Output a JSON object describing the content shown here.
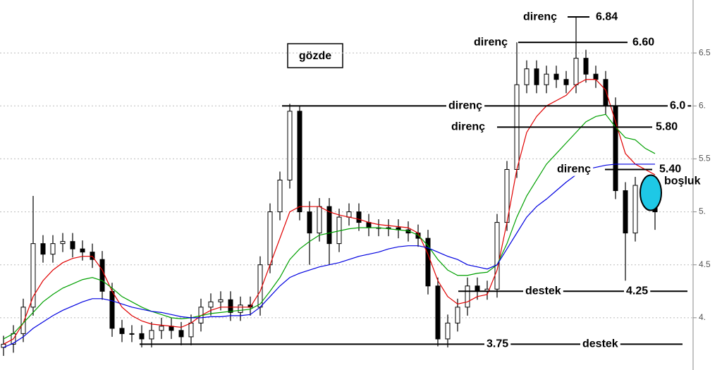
{
  "chart_data": {
    "type": "candlestick",
    "open": [
      3.72,
      3.75,
      3.85,
      4.1,
      4.7,
      4.6,
      4.7,
      4.72,
      4.65,
      4.62,
      4.55,
      4.25,
      3.9,
      3.85,
      3.85,
      3.8,
      3.88,
      3.92,
      3.88,
      3.82,
      3.95,
      4.1,
      4.15,
      4.17,
      4.05,
      4.12,
      4.1,
      4.5,
      5.0,
      5.3,
      5.95,
      5.0,
      4.8,
      5.05,
      4.7,
      4.95,
      5.0,
      4.9,
      4.85,
      4.85,
      4.85,
      4.83,
      4.8,
      4.75,
      4.3,
      3.8,
      3.95,
      4.1,
      4.3,
      4.25,
      4.27,
      4.9,
      5.4,
      6.2,
      6.35,
      6.2,
      6.3,
      6.25,
      6.2,
      6.45,
      6.3,
      6.25,
      6.0,
      5.2,
      4.8,
      5.25,
      5.2
    ],
    "high": [
      3.83,
      3.93,
      4.18,
      5.15,
      4.78,
      4.78,
      4.8,
      4.8,
      4.73,
      4.7,
      4.63,
      4.33,
      3.98,
      3.93,
      3.93,
      3.96,
      4.0,
      4.0,
      3.96,
      4.03,
      4.18,
      4.23,
      4.25,
      4.25,
      4.2,
      4.2,
      4.58,
      5.08,
      5.38,
      6.02,
      6.0,
      5.1,
      5.13,
      5.13,
      5.03,
      5.08,
      5.08,
      4.98,
      4.93,
      4.93,
      4.93,
      4.91,
      4.88,
      4.83,
      4.38,
      4.03,
      4.18,
      4.38,
      4.38,
      4.35,
      4.98,
      5.48,
      6.6,
      6.43,
      6.43,
      6.38,
      6.38,
      6.33,
      6.84,
      6.53,
      6.38,
      6.33,
      6.08,
      5.28,
      5.33,
      5.33,
      5.28
    ],
    "low": [
      3.64,
      3.67,
      3.77,
      4.02,
      4.52,
      4.52,
      4.62,
      4.57,
      4.54,
      4.47,
      4.17,
      3.82,
      3.77,
      3.77,
      3.72,
      3.72,
      3.8,
      3.8,
      3.74,
      3.74,
      3.87,
      4.02,
      4.07,
      3.97,
      3.97,
      4.02,
      4.02,
      4.42,
      4.92,
      5.22,
      4.92,
      4.5,
      4.72,
      4.5,
      4.62,
      4.87,
      4.82,
      4.77,
      4.77,
      4.77,
      4.75,
      4.72,
      4.67,
      4.22,
      3.73,
      3.72,
      3.87,
      4.02,
      4.17,
      4.17,
      4.19,
      4.82,
      5.32,
      6.12,
      6.12,
      6.12,
      6.17,
      6.12,
      6.12,
      6.22,
      6.17,
      5.92,
      5.12,
      4.35,
      4.72,
      5.12,
      4.83
    ],
    "close": [
      3.75,
      3.85,
      4.1,
      4.7,
      4.6,
      4.7,
      4.72,
      4.65,
      4.62,
      4.55,
      4.25,
      3.9,
      3.85,
      3.85,
      3.8,
      3.88,
      3.92,
      3.88,
      3.82,
      3.95,
      4.1,
      4.15,
      4.17,
      4.05,
      4.12,
      4.1,
      4.5,
      5.0,
      5.3,
      5.95,
      5.0,
      4.8,
      5.05,
      4.7,
      4.95,
      5.0,
      4.9,
      4.85,
      4.85,
      4.85,
      4.83,
      4.8,
      4.75,
      4.3,
      3.8,
      3.95,
      4.1,
      4.3,
      4.25,
      4.27,
      4.9,
      5.4,
      6.2,
      6.35,
      6.2,
      6.3,
      6.25,
      6.2,
      6.45,
      6.3,
      6.25,
      6.0,
      5.2,
      4.8,
      5.25,
      5.2,
      5.0
    ],
    "moving_averages": [
      {
        "color": "#e00000",
        "values": [
          3.75,
          3.8,
          3.95,
          4.2,
          4.35,
          4.45,
          4.52,
          4.56,
          4.58,
          4.58,
          4.45,
          4.25,
          4.1,
          4.02,
          3.97,
          3.94,
          3.93,
          3.92,
          3.91,
          3.95,
          4.02,
          4.07,
          4.1,
          4.1,
          4.1,
          4.1,
          4.25,
          4.5,
          4.75,
          5.0,
          5.05,
          5.05,
          5.05,
          5.0,
          4.97,
          4.95,
          4.93,
          4.9,
          4.88,
          4.87,
          4.86,
          4.85,
          4.8,
          4.6,
          4.35,
          4.2,
          4.13,
          4.15,
          4.2,
          4.22,
          4.45,
          4.9,
          5.4,
          5.75,
          5.9,
          6.0,
          6.05,
          6.1,
          6.2,
          6.25,
          6.25,
          6.15,
          5.85,
          5.55,
          5.45,
          5.4,
          5.35
        ]
      },
      {
        "color": "#00a000",
        "values": [
          3.8,
          3.85,
          3.95,
          4.05,
          4.15,
          4.22,
          4.28,
          4.32,
          4.36,
          4.38,
          4.35,
          4.28,
          4.2,
          4.15,
          4.1,
          4.06,
          4.03,
          4.0,
          3.99,
          4.0,
          4.02,
          4.04,
          4.05,
          4.06,
          4.07,
          4.08,
          4.13,
          4.25,
          4.38,
          4.55,
          4.65,
          4.72,
          4.78,
          4.8,
          4.82,
          4.84,
          4.85,
          4.85,
          4.85,
          4.84,
          4.83,
          4.82,
          4.78,
          4.68,
          4.55,
          4.45,
          4.4,
          4.4,
          4.42,
          4.43,
          4.5,
          4.7,
          4.95,
          5.15,
          5.3,
          5.45,
          5.55,
          5.65,
          5.75,
          5.85,
          5.9,
          5.92,
          5.8,
          5.7,
          5.68,
          5.6,
          5.55
        ]
      },
      {
        "color": "#0000e0",
        "values": [
          3.72,
          3.76,
          3.82,
          3.9,
          3.96,
          4.02,
          4.07,
          4.11,
          4.15,
          4.18,
          4.18,
          4.16,
          4.13,
          4.1,
          4.08,
          4.06,
          4.05,
          4.03,
          4.01,
          4.0,
          4.0,
          4.01,
          4.01,
          4.02,
          4.02,
          4.03,
          4.1,
          4.2,
          4.3,
          4.38,
          4.42,
          4.45,
          4.48,
          4.5,
          4.52,
          4.55,
          4.58,
          4.6,
          4.62,
          4.65,
          4.67,
          4.68,
          4.68,
          4.66,
          4.62,
          4.58,
          4.55,
          4.5,
          4.48,
          4.46,
          4.5,
          4.65,
          4.8,
          4.95,
          5.05,
          5.12,
          5.2,
          5.28,
          5.35,
          5.4,
          5.42,
          5.44,
          5.45,
          5.45,
          5.45,
          5.45,
          5.45
        ]
      }
    ],
    "ylim": [
      3.5,
      7
    ],
    "yticks": [
      {
        "value": 4,
        "label": "4."
      },
      4.5,
      {
        "value": 5,
        "label": "5."
      },
      5.5,
      {
        "value": 6,
        "label": "6."
      },
      6.5
    ],
    "grid": true,
    "note": "gözde",
    "levels": [
      {
        "text": "direnç",
        "level": 6.84
      },
      {
        "text": "direnç",
        "level": {
          "value": 6.6,
          "label": "6.60"
        }
      },
      {
        "text": "direnç",
        "level": {
          "value": 6.0,
          "label": "6.0"
        }
      },
      {
        "text": "direnç",
        "level": {
          "value": 5.8,
          "label": "5.80"
        }
      },
      {
        "text": "direnç",
        "level": {
          "value": 5.4,
          "label": "5.40"
        }
      },
      {
        "text": "destek",
        "level": 4.25
      },
      {
        "text": "destek",
        "level": 3.75
      }
    ],
    "gap": {
      "text": "boşluk",
      "level": 5.18
    }
  }
}
